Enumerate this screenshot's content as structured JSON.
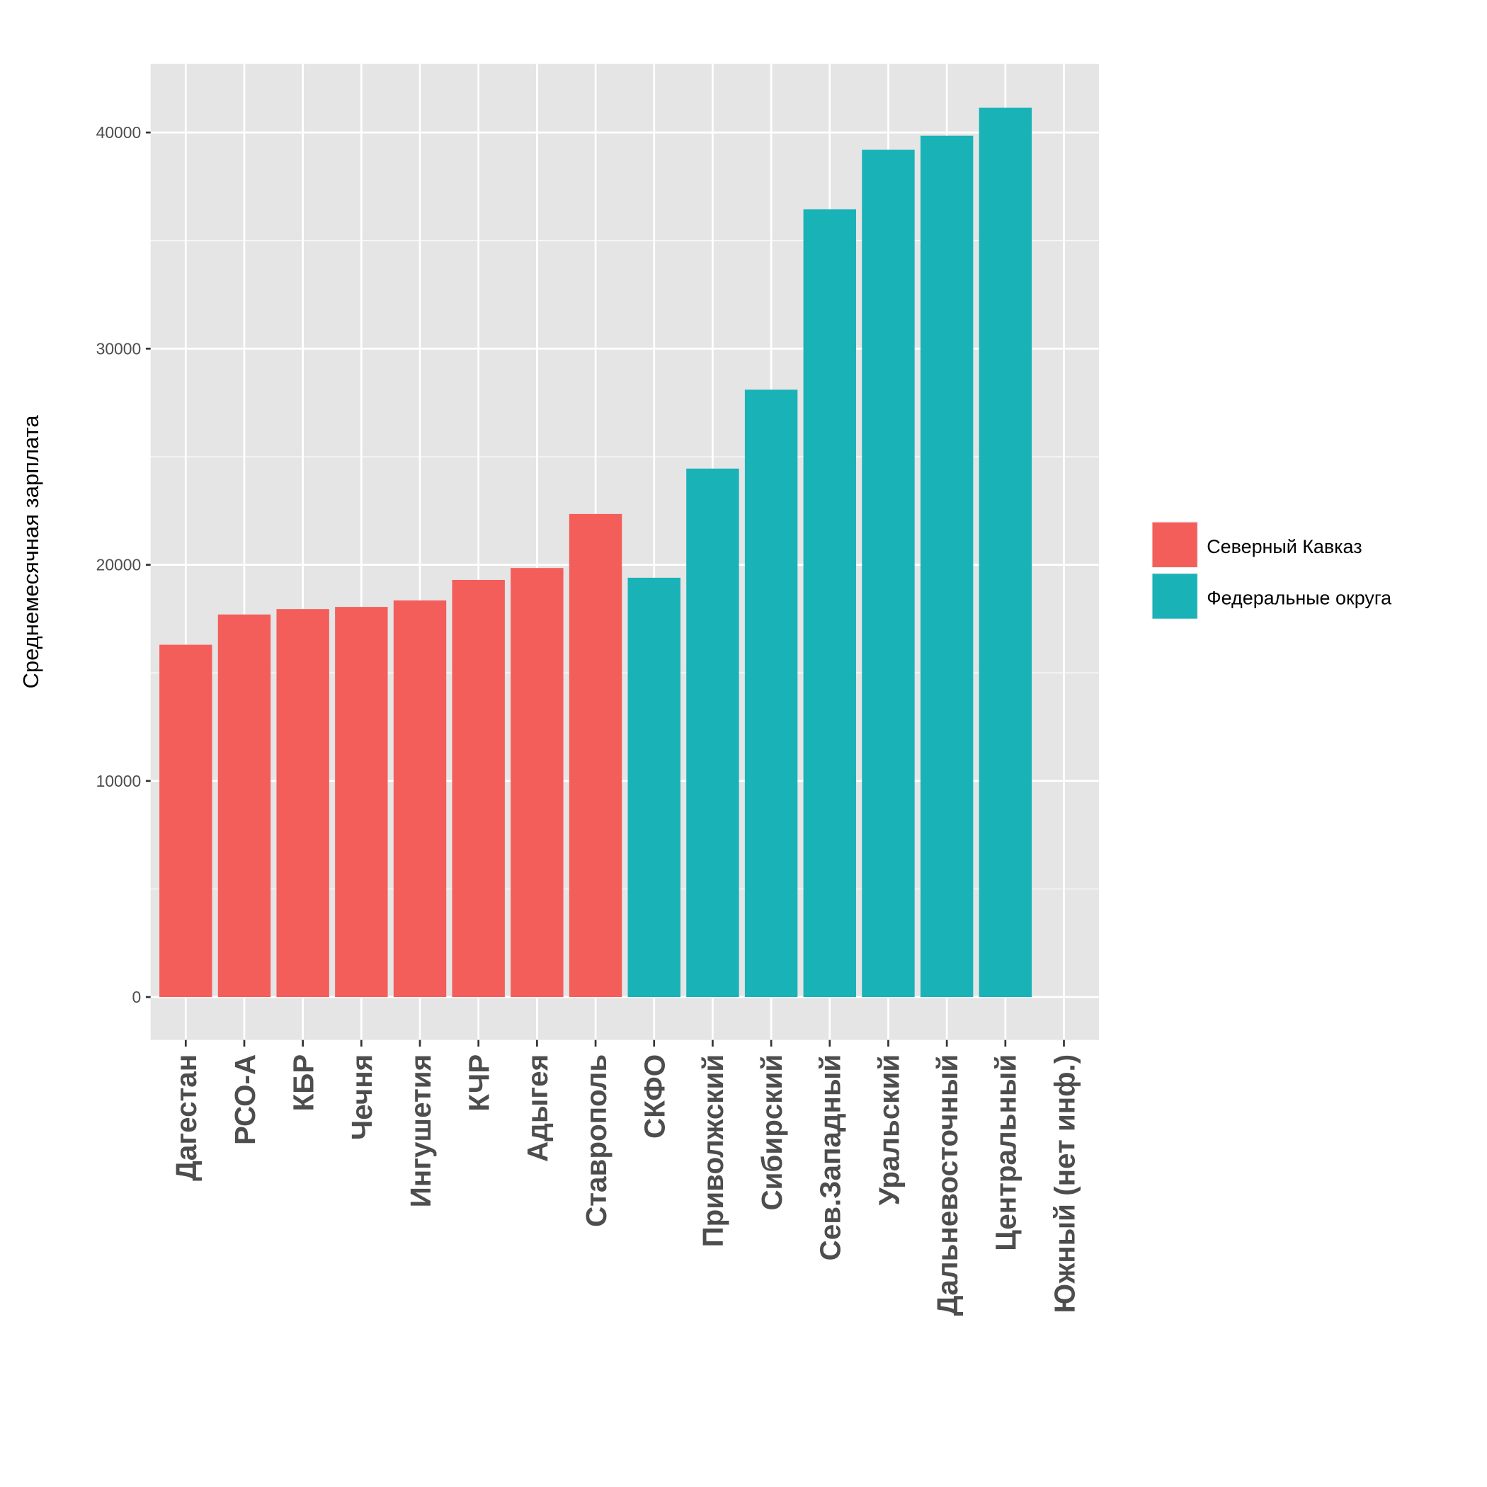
{
  "chart_data": {
    "type": "bar",
    "title": "",
    "xlabel": "",
    "ylabel": "Среднемесячная зарплата",
    "ylim": [
      -2000,
      43200
    ],
    "yticks": [
      0,
      10000,
      20000,
      30000,
      40000
    ],
    "ytick_labels": [
      "0",
      "10000",
      "20000",
      "30000",
      "40000"
    ],
    "grid": true,
    "legend_position": "right",
    "categories": [
      "Дагестан",
      "РСО-А",
      "КБР",
      "Чечня",
      "Ингушетия",
      "КЧР",
      "Адыгея",
      "Ставрополь",
      "СКФО",
      "Приволжский",
      "Сибирский",
      "Сев.Западный",
      "Уральский",
      "Дальневосточный",
      "Центральный",
      "Южный (нет инф.)"
    ],
    "values": [
      16300,
      17700,
      17950,
      18050,
      18350,
      19300,
      19850,
      22350,
      19400,
      24450,
      28100,
      36450,
      39200,
      39850,
      41150,
      null
    ],
    "groups": [
      0,
      0,
      0,
      0,
      0,
      0,
      0,
      0,
      1,
      1,
      1,
      1,
      1,
      1,
      1,
      1
    ],
    "legend": [
      {
        "name": "Северный Кавказ",
        "color": "#F35E5A"
      },
      {
        "name": "Федеральные округа",
        "color": "#19B2B7"
      }
    ],
    "panel_background": "#E5E5E5",
    "grid_color": "#FFFFFF"
  }
}
